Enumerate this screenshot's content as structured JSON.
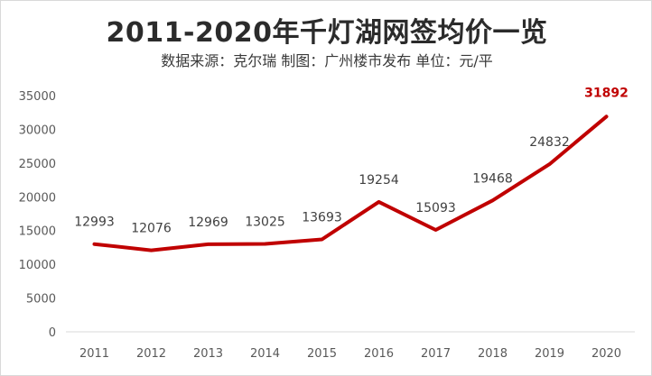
{
  "chart_data": {
    "type": "line",
    "title": "2011-2020年千灯湖网签均价一览",
    "subtitle": "数据来源：克尔瑞 制图：广州楼市发布 单位：元/平",
    "x": [
      "2011",
      "2012",
      "2013",
      "2014",
      "2015",
      "2016",
      "2017",
      "2018",
      "2019",
      "2020"
    ],
    "series": [
      {
        "values": [
          12993,
          12076,
          12969,
          13025,
          13693,
          19254,
          15093,
          19468,
          24832,
          31892
        ],
        "color": "#c00000"
      }
    ],
    "data_labels": [
      "12993",
      "12076",
      "12969",
      "13025",
      "13693",
      "19254",
      "15093",
      "19468",
      "24832",
      "31892"
    ],
    "y_ticks": [
      "0",
      "5000",
      "10000",
      "15000",
      "20000",
      "25000",
      "30000",
      "35000"
    ],
    "ylim": [
      0,
      35000
    ],
    "highlight_color": "#c00000",
    "grid": false,
    "xlabel": "",
    "ylabel": ""
  }
}
